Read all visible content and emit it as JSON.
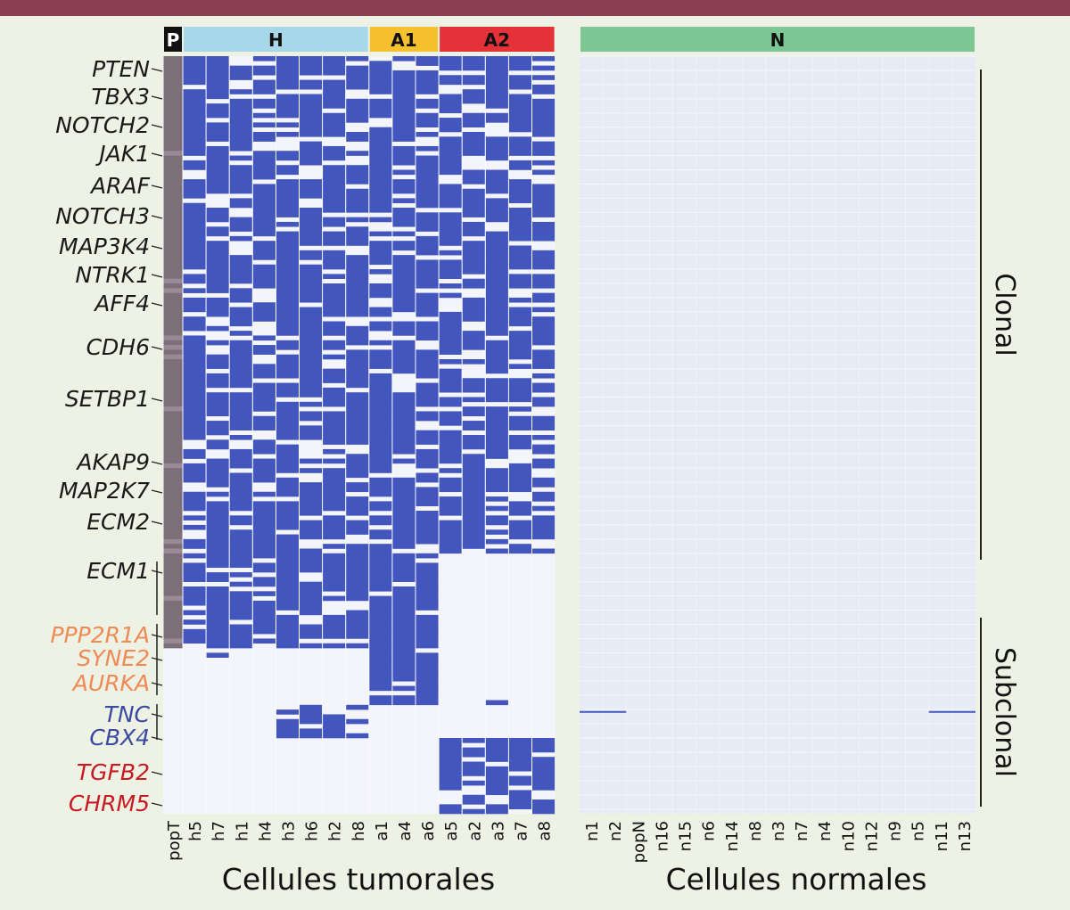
{
  "chart_data": {
    "type": "heatmap",
    "title": "",
    "xlabel_tumor": "Cellules tumorales",
    "xlabel_normal": "Cellules normales",
    "groups": [
      {
        "key": "P",
        "label": "P",
        "color": "#111111"
      },
      {
        "key": "H",
        "label": "H",
        "color": "#a6d8ea"
      },
      {
        "key": "A1",
        "label": "A1",
        "color": "#f6c12f"
      },
      {
        "key": "A2",
        "label": "A2",
        "color": "#e53238"
      },
      {
        "key": "N",
        "label": "N",
        "color": "#7cc794"
      }
    ],
    "tumor_columns": [
      "popT",
      "h5",
      "h7",
      "h1",
      "h4",
      "h3",
      "h6",
      "h2",
      "h8",
      "a1",
      "a4",
      "a6",
      "a5",
      "a2",
      "a3",
      "a7",
      "a8"
    ],
    "tumor_column_groups": [
      "P",
      "H",
      "H",
      "H",
      "H",
      "H",
      "H",
      "H",
      "H",
      "A1",
      "A1",
      "A1",
      "A2",
      "A2",
      "A2",
      "A2",
      "A2"
    ],
    "normal_columns": [
      "n1",
      "n2",
      "popN",
      "n16",
      "n15",
      "n6",
      "n14",
      "n8",
      "n3",
      "n7",
      "n4",
      "n10",
      "n12",
      "n9",
      "n5",
      "n11",
      "n13"
    ],
    "genes": [
      {
        "name": "PTEN",
        "class": "clonal",
        "color": "#1a1a1a"
      },
      {
        "name": "TBX3",
        "class": "clonal",
        "color": "#1a1a1a"
      },
      {
        "name": "NOTCH2",
        "class": "clonal",
        "color": "#1a1a1a"
      },
      {
        "name": "JAK1",
        "class": "clonal",
        "color": "#1a1a1a"
      },
      {
        "name": "ARAF",
        "class": "clonal",
        "color": "#1a1a1a"
      },
      {
        "name": "NOTCH3",
        "class": "clonal",
        "color": "#1a1a1a"
      },
      {
        "name": "MAP3K4",
        "class": "clonal",
        "color": "#1a1a1a"
      },
      {
        "name": "NTRK1",
        "class": "clonal",
        "color": "#1a1a1a"
      },
      {
        "name": "AFF4",
        "class": "clonal",
        "color": "#1a1a1a"
      },
      {
        "name": "CDH6",
        "class": "clonal",
        "color": "#1a1a1a"
      },
      {
        "name": "SETBP1",
        "class": "clonal",
        "color": "#1a1a1a"
      },
      {
        "name": "AKAP9",
        "class": "clonal",
        "color": "#1a1a1a"
      },
      {
        "name": "MAP2K7",
        "class": "clonal",
        "color": "#1a1a1a"
      },
      {
        "name": "ECM2",
        "class": "clonal",
        "color": "#1a1a1a"
      },
      {
        "name": "ECM1",
        "class": "clonal",
        "color": "#1a1a1a"
      },
      {
        "name": "PPP2R1A",
        "class": "subclonal",
        "color": "#f08a54"
      },
      {
        "name": "SYNE2",
        "class": "subclonal",
        "color": "#f08a54"
      },
      {
        "name": "AURKA",
        "class": "subclonal",
        "color": "#f08a54"
      },
      {
        "name": "TNC",
        "class": "subclonal",
        "color": "#3a4aa0"
      },
      {
        "name": "CBX4",
        "class": "subclonal",
        "color": "#3a4aa0"
      },
      {
        "name": "TGFB2",
        "class": "subclonal",
        "color": "#c81a22"
      },
      {
        "name": "CHRM5",
        "class": "subclonal",
        "color": "#c81a22"
      }
    ],
    "bracket_labels": {
      "clonal": "Clonal",
      "subclonal": "Subclonal"
    },
    "colors": {
      "mutated": "#4256bd",
      "absent": "#f4f5fb",
      "normal_bg": "#e7ebf6",
      "popT": "#7d6f78"
    }
  }
}
